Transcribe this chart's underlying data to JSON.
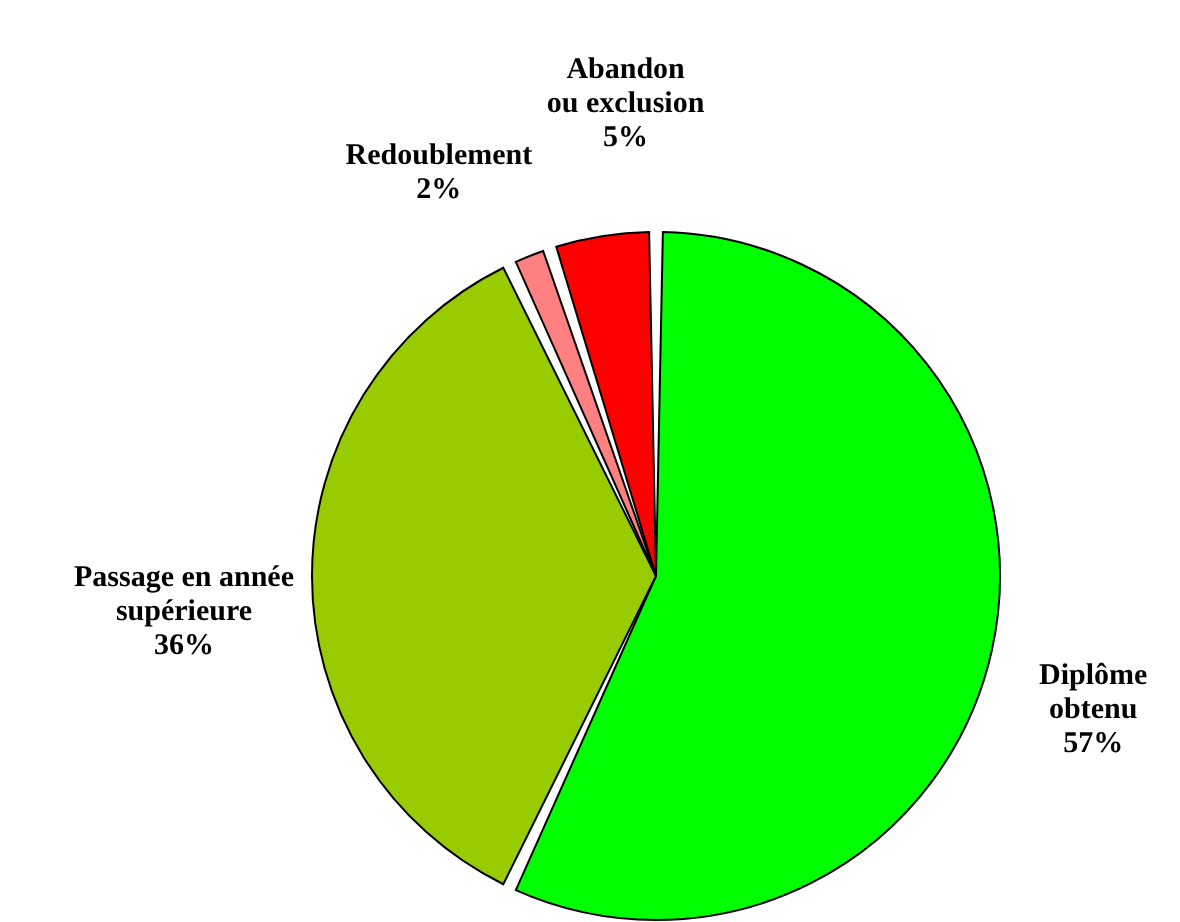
{
  "chart_data": {
    "type": "pie",
    "categories": [
      "Diplôme\nobtenu",
      "Passage en année\nsupérieure",
      "Redoublement",
      "Abandon\nou exclusion"
    ],
    "values": [
      57,
      36,
      2,
      5
    ],
    "colors": [
      "#00ff00",
      "#99cc00",
      "#ff8080",
      "#ff0000"
    ],
    "value_labels": [
      "57%",
      "36%",
      "2%",
      "5%"
    ]
  }
}
